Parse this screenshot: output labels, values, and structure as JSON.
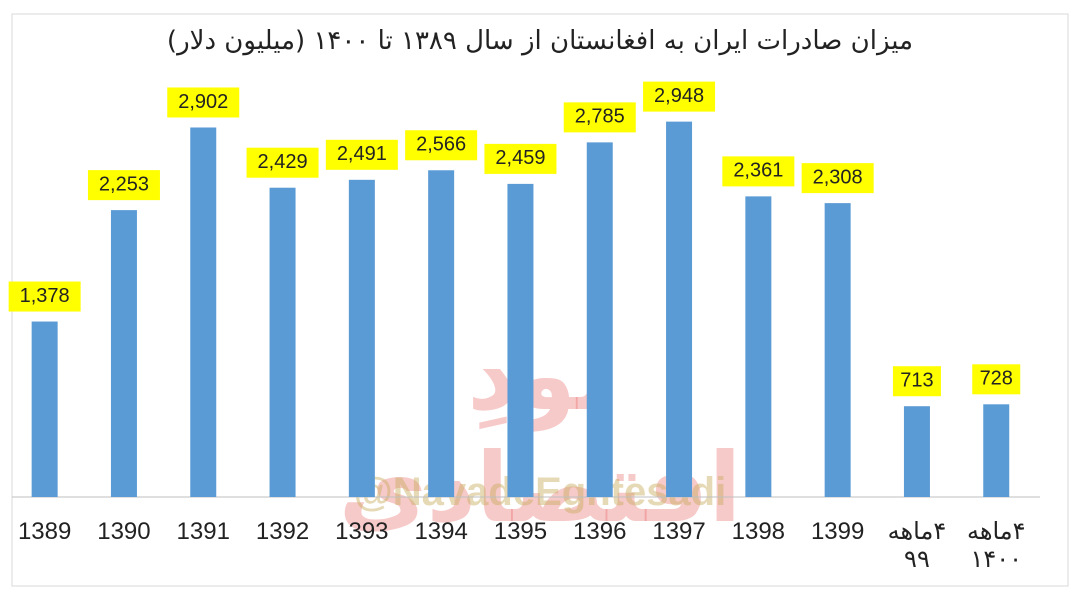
{
  "chart_data": {
    "type": "bar",
    "title": "میزان صادرات ایران به افغانستان از سال ۱۳۸۹ تا ۱۴۰۰ (میلیون دلار)",
    "categories": [
      "1389",
      "1390",
      "1391",
      "1392",
      "1393",
      "1394",
      "1395",
      "1396",
      "1397",
      "1398",
      "1399",
      "۴ماهه\n۹۹",
      "۴ماهه\n۱۴۰۰"
    ],
    "values": [
      1378,
      2253,
      2902,
      2429,
      2491,
      2566,
      2459,
      2785,
      2948,
      2361,
      2308,
      713,
      728
    ],
    "value_labels": [
      "1,378",
      "2,253",
      "2,902",
      "2,429",
      "2,491",
      "2,566",
      "2,459",
      "2,785",
      "2,948",
      "2,361",
      "2,308",
      "713",
      "728"
    ],
    "color": "#5b9bd5",
    "label_color": "#ffff00",
    "ylim": [
      0,
      3000
    ],
    "watermark": "نودِ اقتصادی",
    "handle": "@NavadeEghtesadi"
  }
}
